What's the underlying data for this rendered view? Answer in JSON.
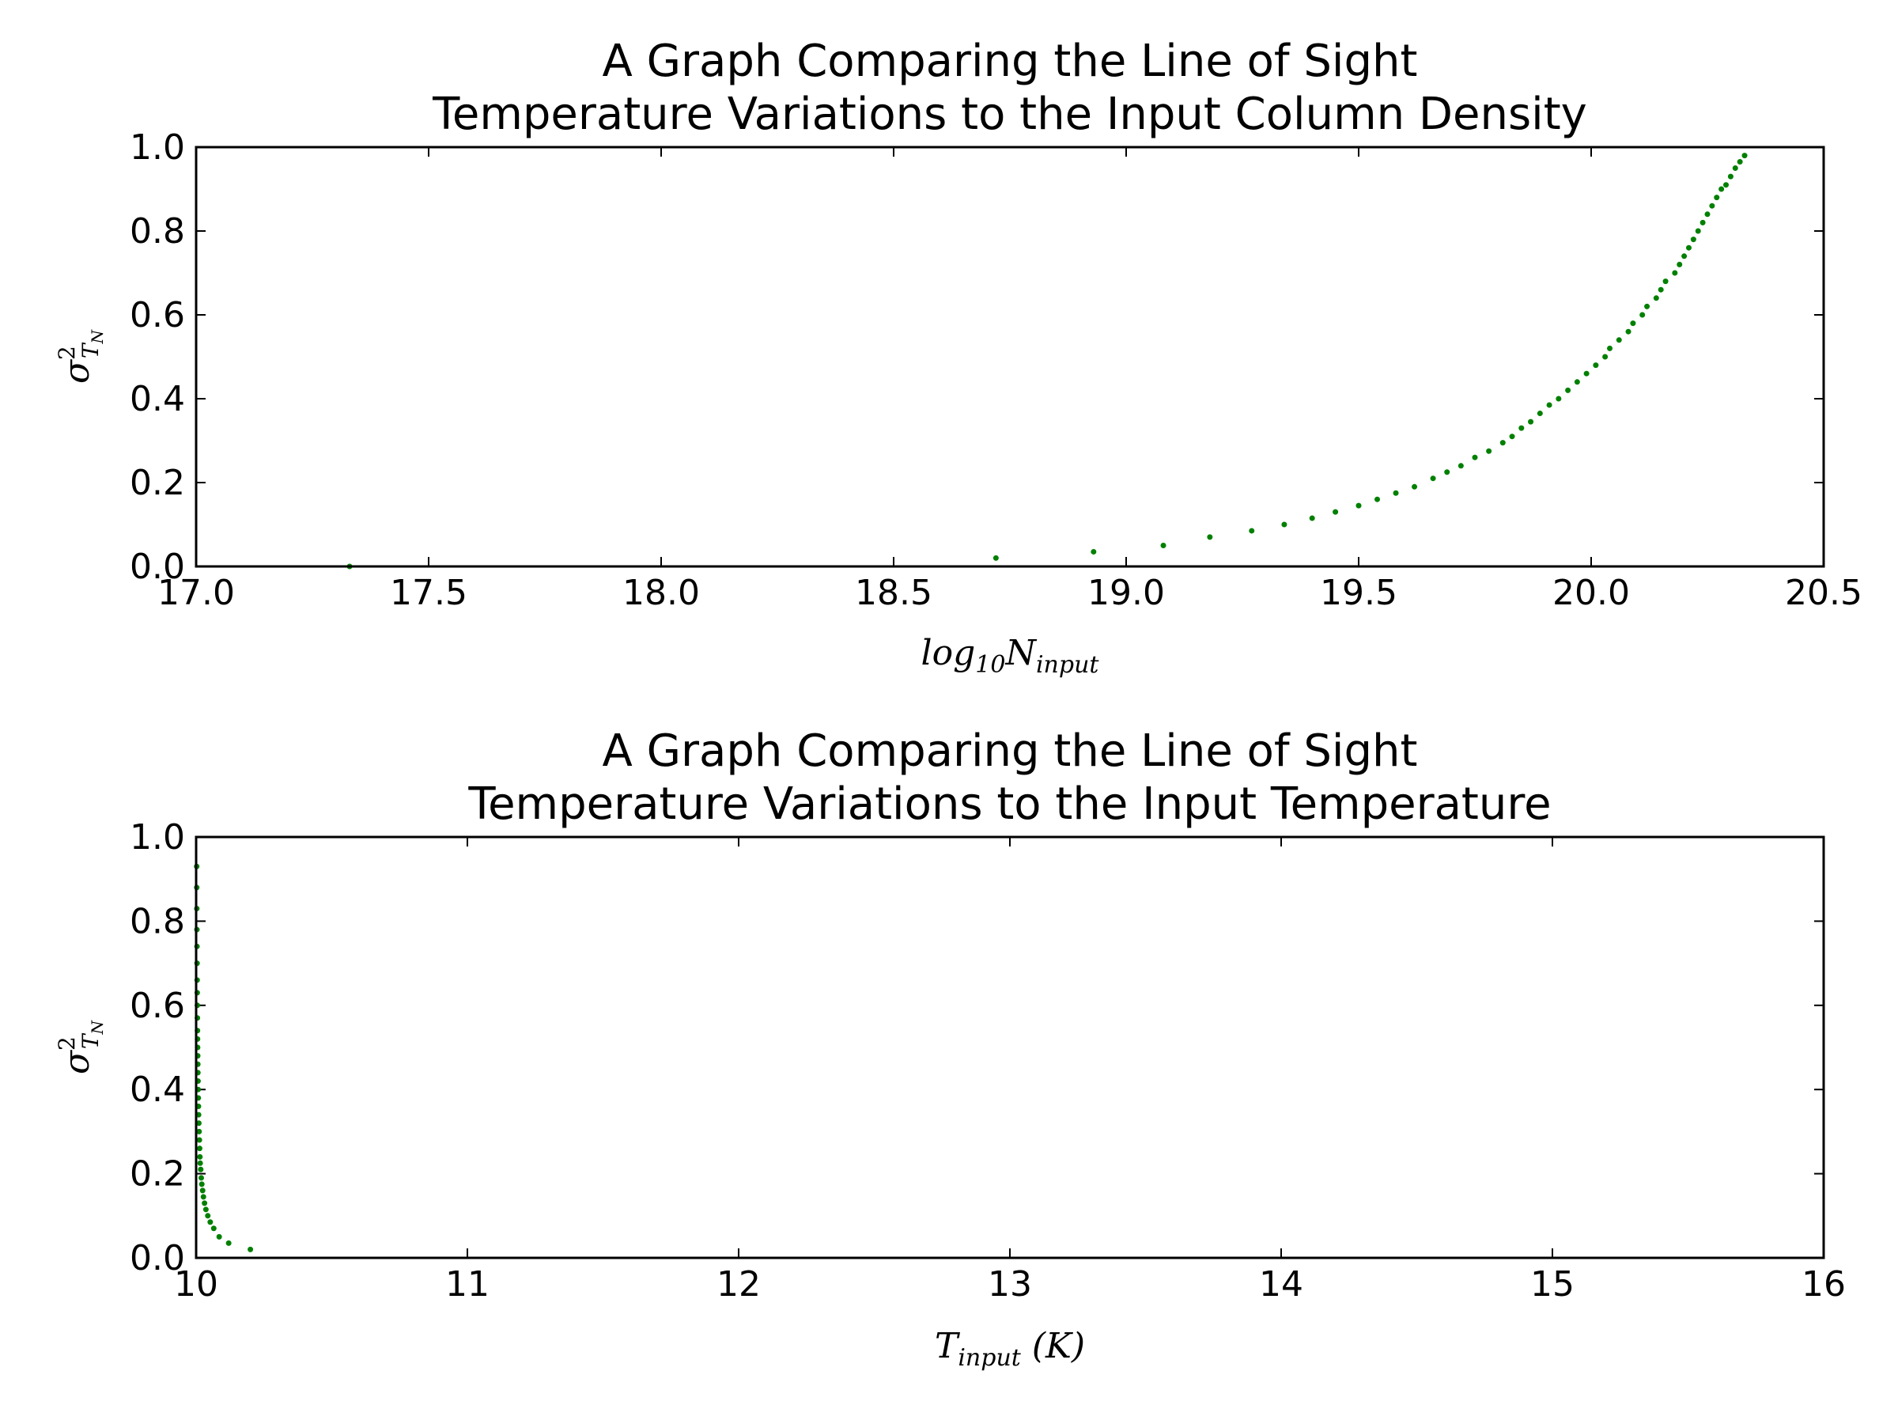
{
  "chart_data": [
    {
      "type": "scatter",
      "title_lines": [
        "A Graph Comparing the Line of Sight",
        "Temperature Variations to the Input Column Density"
      ],
      "xlabel": {
        "base": "log",
        "sub1": "10",
        "main": "N",
        "sub2": "input"
      },
      "ylabel": {
        "base": "σ",
        "sup": "2",
        "sub": "T",
        "subsub": "N"
      },
      "xlim": [
        17.0,
        20.5
      ],
      "ylim": [
        0.0,
        1.0
      ],
      "xticks": [
        "17.0",
        "17.5",
        "18.0",
        "18.5",
        "19.0",
        "19.5",
        "20.0",
        "20.5"
      ],
      "yticks": [
        "0.0",
        "0.2",
        "0.4",
        "0.6",
        "0.8",
        "1.0"
      ],
      "grid": false,
      "color": "#008000",
      "x": [
        17.33,
        18.72,
        18.93,
        19.08,
        19.18,
        19.27,
        19.34,
        19.4,
        19.45,
        19.5,
        19.54,
        19.58,
        19.62,
        19.66,
        19.69,
        19.72,
        19.75,
        19.78,
        19.81,
        19.83,
        19.85,
        19.87,
        19.89,
        19.91,
        19.93,
        19.95,
        19.97,
        19.99,
        20.01,
        20.03,
        20.04,
        20.06,
        20.08,
        20.09,
        20.11,
        20.12,
        20.14,
        20.15,
        20.16,
        20.18,
        20.19,
        20.2,
        20.21,
        20.22,
        20.23,
        20.24,
        20.25,
        20.26,
        20.27,
        20.28,
        20.29,
        20.3,
        20.31,
        20.32,
        20.33
      ],
      "y": [
        0.0,
        0.02,
        0.035,
        0.05,
        0.07,
        0.085,
        0.1,
        0.115,
        0.13,
        0.145,
        0.16,
        0.175,
        0.19,
        0.21,
        0.225,
        0.24,
        0.26,
        0.275,
        0.295,
        0.31,
        0.33,
        0.345,
        0.365,
        0.385,
        0.4,
        0.42,
        0.44,
        0.46,
        0.48,
        0.5,
        0.52,
        0.54,
        0.56,
        0.58,
        0.6,
        0.62,
        0.64,
        0.66,
        0.68,
        0.7,
        0.72,
        0.74,
        0.76,
        0.78,
        0.8,
        0.82,
        0.84,
        0.86,
        0.88,
        0.9,
        0.91,
        0.93,
        0.95,
        0.965,
        0.98
      ]
    },
    {
      "type": "scatter",
      "title_lines": [
        "A Graph Comparing the Line of Sight",
        "Temperature Variations to the Input Temperature"
      ],
      "xlabel": {
        "main": "T",
        "sub": "input",
        "unit": "(K)"
      },
      "ylabel": {
        "base": "σ",
        "sup": "2",
        "sub": "T",
        "subsub": "N"
      },
      "xlim": [
        10,
        16
      ],
      "ylim": [
        0.0,
        1.0
      ],
      "xticks": [
        "10",
        "11",
        "12",
        "13",
        "14",
        "15",
        "16"
      ],
      "yticks": [
        "0.0",
        "0.2",
        "0.4",
        "0.6",
        "0.8",
        "1.0"
      ],
      "grid": false,
      "color": "#008000",
      "x": [
        10.2,
        10.12,
        10.085,
        10.065,
        10.052,
        10.043,
        10.036,
        10.031,
        10.027,
        10.024,
        10.021,
        10.019,
        10.017,
        10.015,
        10.014,
        10.013,
        10.012,
        10.011,
        10.01,
        10.009,
        10.0085,
        10.008,
        10.0075,
        10.007,
        10.0066,
        10.0062,
        10.0058,
        10.0055,
        10.0052,
        10.0049,
        10.0046,
        10.0043,
        10.004,
        10.0037,
        10.0034,
        10.0031,
        10.0028,
        10.0025,
        10.0022,
        10.002
      ],
      "y": [
        0.02,
        0.035,
        0.05,
        0.07,
        0.085,
        0.1,
        0.115,
        0.13,
        0.145,
        0.16,
        0.175,
        0.19,
        0.21,
        0.225,
        0.24,
        0.26,
        0.28,
        0.3,
        0.32,
        0.34,
        0.36,
        0.38,
        0.4,
        0.42,
        0.44,
        0.46,
        0.48,
        0.5,
        0.52,
        0.54,
        0.57,
        0.6,
        0.63,
        0.66,
        0.7,
        0.74,
        0.78,
        0.83,
        0.88,
        0.93
      ]
    }
  ]
}
